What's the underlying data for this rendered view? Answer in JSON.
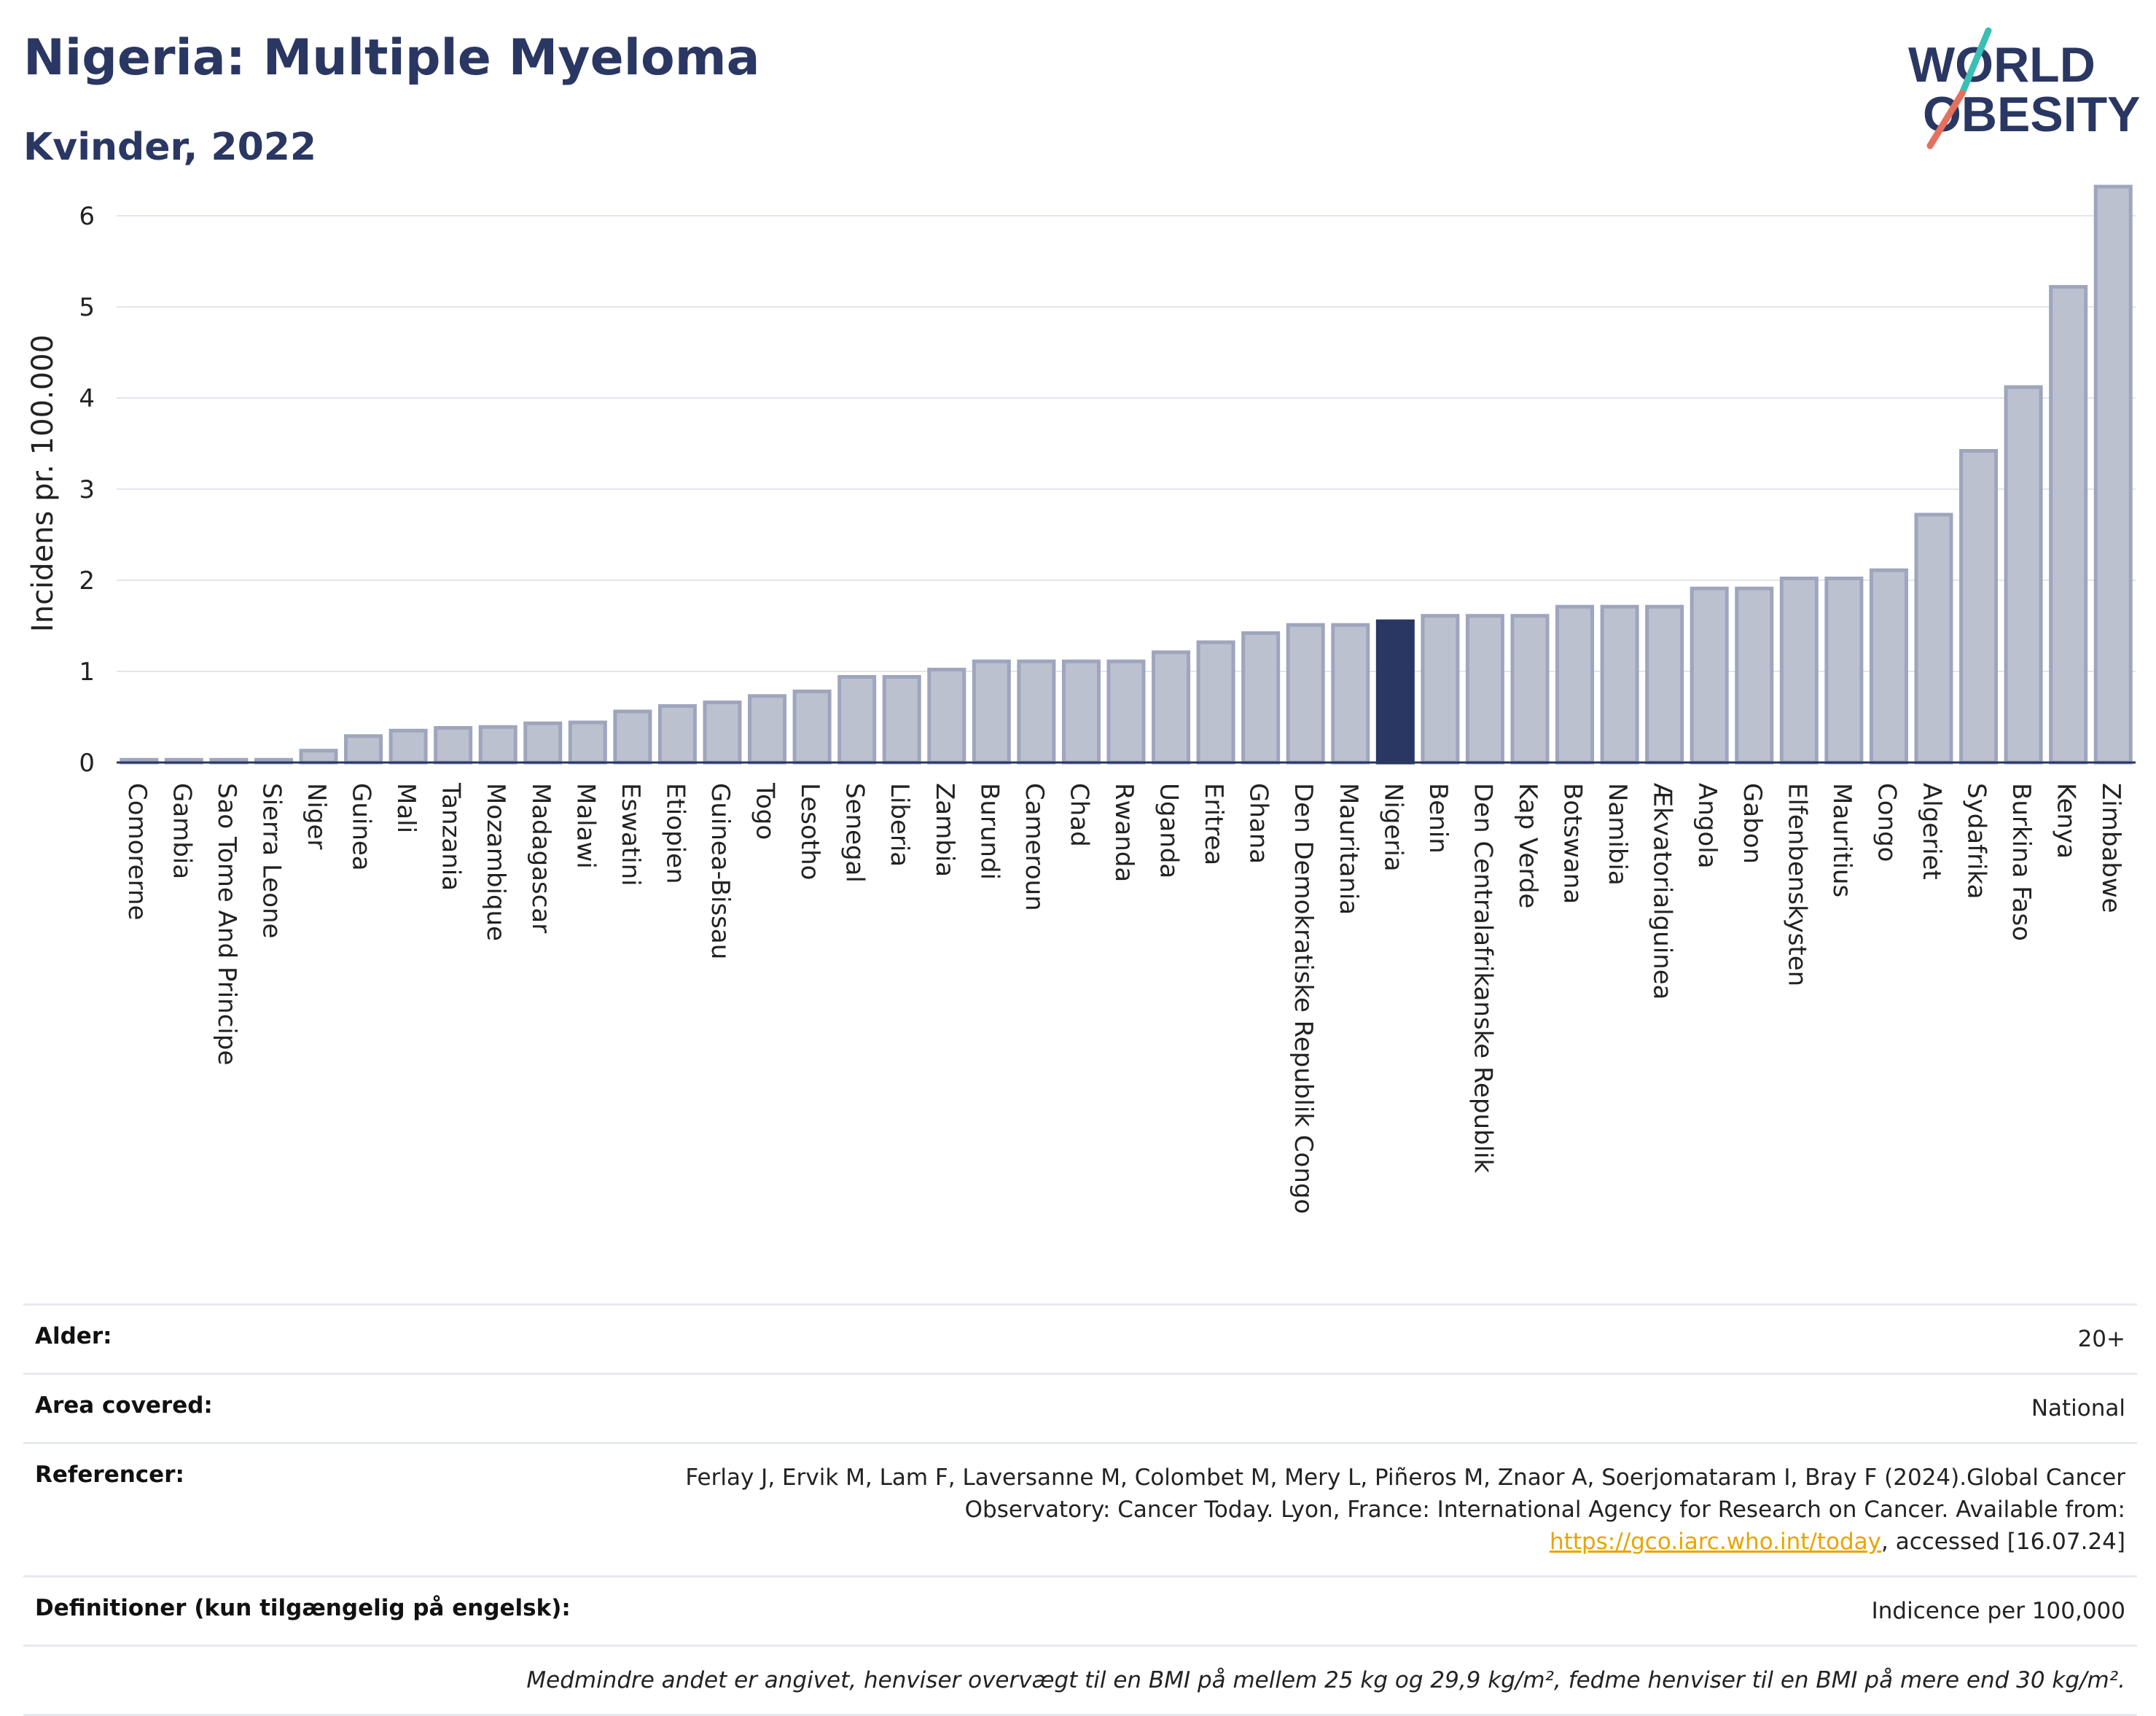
{
  "header": {
    "title": "Nigeria: Multiple Myeloma",
    "subtitle": "Kvinder, 2022",
    "logo_line1": "WORLD",
    "logo_line2": "OBESITY"
  },
  "colors": {
    "bar": "#bcc1d0",
    "bar_stroke": "#9ea5bd",
    "highlight": "#2a3763",
    "grid": "#e4e6ee",
    "logo_text": "#2a3763",
    "logo_teal": "#3bbfb5",
    "logo_coral": "#e5705d"
  },
  "chart_data": {
    "type": "bar",
    "ylabel": "Incidens pr. 100.000",
    "xlabel": "",
    "ylim": [
      0,
      6.6
    ],
    "yticks": [
      0,
      1,
      2,
      3,
      4,
      5,
      6
    ],
    "highlight": "Nigeria",
    "categories": [
      "Comorerne",
      "Gambia",
      "Sao Tome And Principe",
      "Sierra Leone",
      "Niger",
      "Guinea",
      "Mali",
      "Tanzania",
      "Mozambique",
      "Madagascar",
      "Malawi",
      "Eswatini",
      "Etiopien",
      "Guinea-Bissau",
      "Togo",
      "Lesotho",
      "Senegal",
      "Liberia",
      "Zambia",
      "Burundi",
      "Cameroun",
      "Chad",
      "Rwanda",
      "Uganda",
      "Eritrea",
      "Ghana",
      "Den Demokratiske Republik Congo",
      "Mauritania",
      "Nigeria",
      "Benin",
      "Den Centralafrikanske Republik",
      "Kap Verde",
      "Botswana",
      "Namibia",
      "Ækvatorialguinea",
      "Angola",
      "Gabon",
      "Elfenbenskysten",
      "Mauritius",
      "Congo",
      "Algeriet",
      "Sydafrika",
      "Burkina Faso",
      "Kenya",
      "Zimbabwe"
    ],
    "values": [
      0.03,
      0.03,
      0.03,
      0.03,
      0.13,
      0.29,
      0.35,
      0.38,
      0.39,
      0.43,
      0.44,
      0.56,
      0.62,
      0.66,
      0.73,
      0.78,
      0.94,
      0.94,
      1.02,
      1.11,
      1.11,
      1.11,
      1.11,
      1.21,
      1.32,
      1.42,
      1.51,
      1.51,
      1.55,
      1.61,
      1.61,
      1.61,
      1.71,
      1.71,
      1.71,
      1.91,
      1.91,
      2.02,
      2.02,
      2.11,
      2.72,
      3.42,
      4.12,
      5.22,
      6.32
    ]
  },
  "meta": {
    "age_label": "Alder:",
    "age_value": "20+",
    "area_label": "Area covered:",
    "area_value": "National",
    "refs_label": "Referencer:",
    "refs_text_1": "Ferlay J, Ervik M, Lam F, Laversanne M, Colombet M, Mery L, Piñeros M, Znaor A, Soerjomataram I, Bray F (2024).Global Cancer Observatory: Cancer Today. Lyon, France: International Agency for Research on Cancer. Available from: ",
    "refs_link": "https://gco.iarc.who.int/today",
    "refs_text_2": ", accessed [16.07.24]",
    "defs_label": "Definitioner (kun tilgængelig på engelsk):",
    "defs_value": "Indicence per 100,000",
    "note": "Medmindre andet er angivet, henviser overvægt til en BMI på mellem 25 kg og 29,9 kg/m², fedme henviser til en BMI på mere end 30 kg/m²."
  }
}
